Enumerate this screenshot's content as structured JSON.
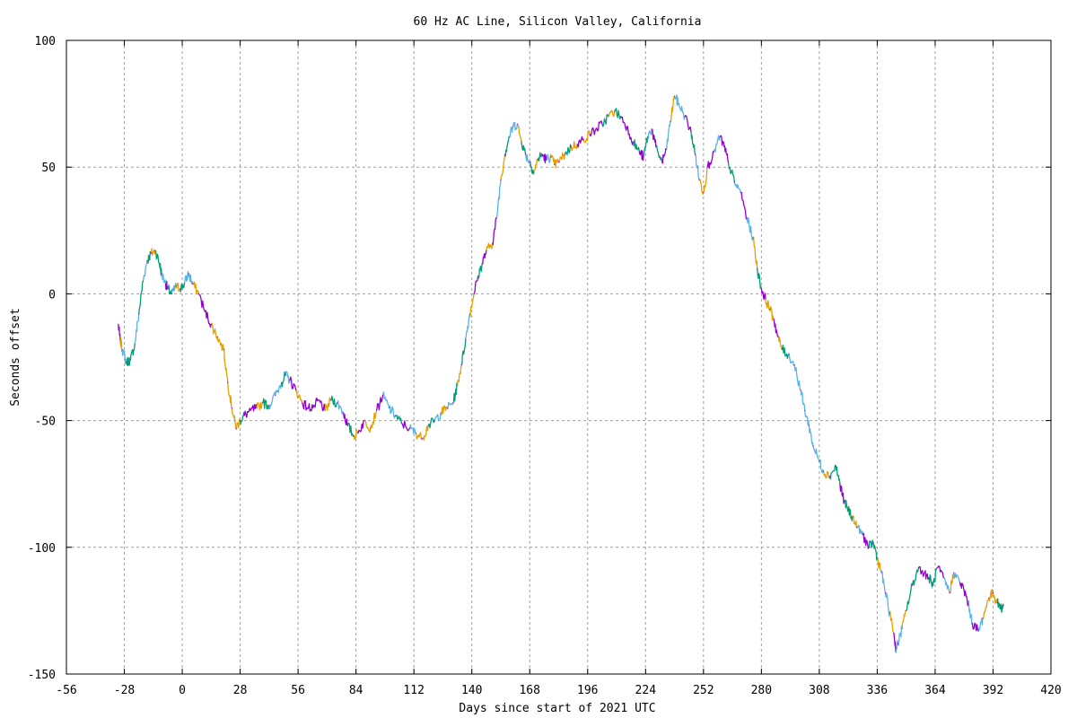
{
  "chart_data": {
    "type": "line",
    "title": "60 Hz AC Line, Silicon Valley, California",
    "xlabel": "Days since start of 2021 UTC",
    "ylabel": "Seconds offset",
    "xlim": [
      -56,
      420
    ],
    "ylim": [
      -150,
      100
    ],
    "xticks": [
      -56,
      -28,
      0,
      28,
      56,
      84,
      112,
      140,
      168,
      196,
      224,
      252,
      280,
      308,
      336,
      364,
      392,
      420
    ],
    "yticks": [
      -150,
      -100,
      -50,
      0,
      50,
      100
    ],
    "xtick_labels": [
      "-56",
      "-28",
      "0",
      "28",
      "56",
      "84",
      "112",
      "140",
      "168",
      "196",
      "224",
      "252",
      "280",
      "308",
      "336",
      "364",
      "392",
      "420"
    ],
    "ytick_labels": [
      "-150",
      "-100",
      "-50",
      "0",
      "50",
      "100"
    ],
    "grid": true,
    "legend": "none",
    "series_colors": [
      "#e69f00",
      "#56b4e9",
      "#009e73",
      "#9400d3",
      "#000000"
    ],
    "x": [
      -31,
      -30,
      -29,
      -27,
      -25,
      -23,
      -21,
      -19,
      -17,
      -15,
      -13,
      -11,
      -10,
      -8,
      -7,
      -5,
      -3,
      -1,
      1,
      3,
      5,
      8,
      11,
      14,
      17,
      20,
      22,
      24,
      26,
      28,
      30,
      33,
      36,
      39,
      42,
      45,
      48,
      50,
      52,
      55,
      58,
      61,
      64,
      66,
      69,
      72,
      75,
      78,
      80,
      83,
      85,
      88,
      91,
      94,
      97,
      100,
      103,
      106,
      110,
      113,
      116,
      119,
      122,
      125,
      128,
      131,
      133,
      135,
      137,
      139,
      141,
      143,
      145,
      147,
      150,
      152,
      154,
      156,
      158,
      160,
      162,
      164,
      166,
      168,
      170,
      172,
      174,
      176,
      178,
      180,
      182,
      185,
      188,
      191,
      194,
      197,
      200,
      203,
      206,
      209,
      212,
      215,
      218,
      221,
      223,
      225,
      227,
      229,
      232,
      234,
      236,
      238,
      240,
      243,
      246,
      248,
      250,
      252,
      254,
      257,
      260,
      262,
      264,
      267,
      270,
      273,
      276,
      278,
      280,
      282,
      284,
      286,
      288,
      290,
      293,
      296,
      299,
      301,
      303,
      305,
      308,
      310,
      313,
      316,
      318,
      320,
      322,
      324,
      326,
      329,
      332,
      334,
      336,
      338,
      340,
      342,
      344,
      345,
      346,
      348,
      350,
      353,
      356,
      359,
      361,
      363,
      365,
      368,
      371,
      373,
      376,
      378,
      380,
      382,
      385,
      387,
      390,
      392,
      394,
      396,
      397
    ],
    "y": [
      -12,
      -18,
      -22,
      -27,
      -26,
      -20,
      -8,
      5,
      13,
      16,
      17,
      12,
      8,
      4,
      2,
      0,
      3,
      2,
      4,
      8,
      4,
      0,
      -7,
      -12,
      -17,
      -22,
      -35,
      -45,
      -53,
      -50,
      -48,
      -46,
      -45,
      -43,
      -44,
      -40,
      -35,
      -32,
      -34,
      -38,
      -43,
      -45,
      -44,
      -42,
      -46,
      -42,
      -43,
      -47,
      -52,
      -56,
      -55,
      -50,
      -53,
      -46,
      -40,
      -45,
      -48,
      -51,
      -53,
      -55,
      -57,
      -52,
      -50,
      -47,
      -45,
      -43,
      -36,
      -28,
      -18,
      -8,
      0,
      7,
      12,
      17,
      20,
      30,
      45,
      55,
      62,
      66,
      67,
      60,
      55,
      52,
      48,
      53,
      55,
      53,
      54,
      51,
      52,
      55,
      58,
      59,
      61,
      63,
      65,
      67,
      70,
      72,
      70,
      66,
      60,
      56,
      54,
      62,
      65,
      58,
      52,
      57,
      68,
      78,
      75,
      70,
      64,
      55,
      45,
      40,
      50,
      56,
      62,
      58,
      52,
      44,
      40,
      30,
      22,
      10,
      2,
      -2,
      -6,
      -10,
      -17,
      -22,
      -24,
      -28,
      -38,
      -46,
      -52,
      -60,
      -66,
      -70,
      -72,
      -68,
      -75,
      -82,
      -85,
      -88,
      -92,
      -95,
      -100,
      -98,
      -104,
      -110,
      -118,
      -126,
      -134,
      -140,
      -138,
      -132,
      -125,
      -115,
      -108,
      -110,
      -112,
      -115,
      -108,
      -112,
      -118,
      -110,
      -114,
      -117,
      -122,
      -130,
      -133,
      -128,
      -120,
      -118,
      -122,
      -124,
      -123
    ]
  }
}
